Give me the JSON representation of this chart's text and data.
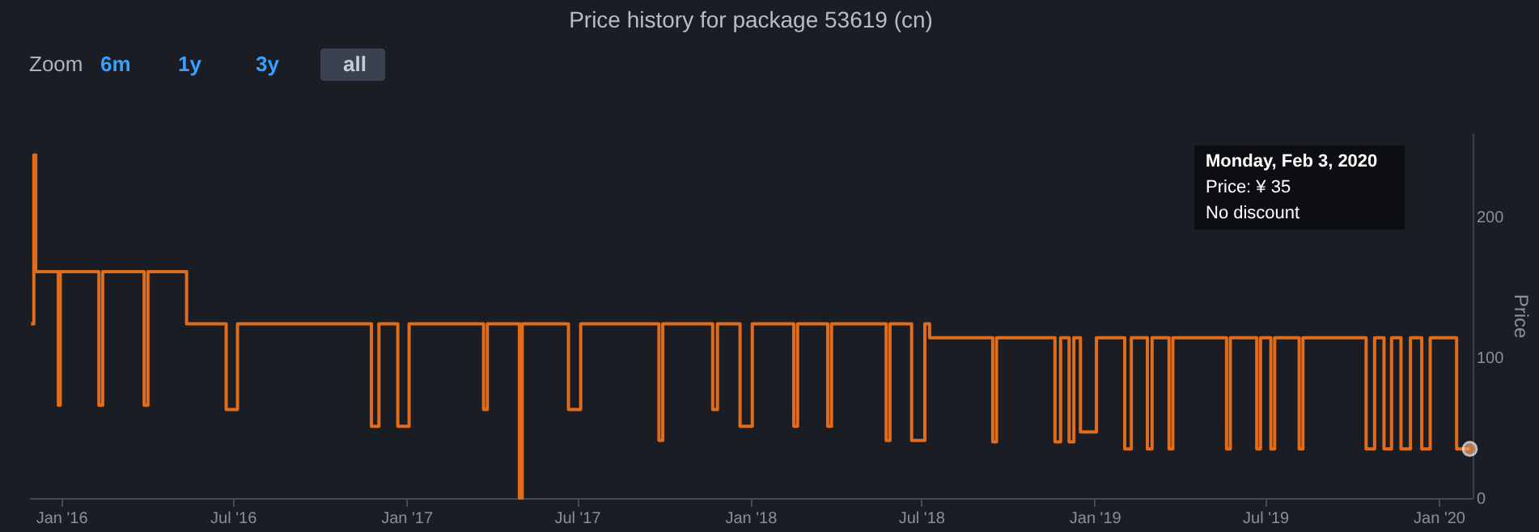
{
  "chart_data": {
    "type": "step",
    "title": "Price history for package 53619 (cn)",
    "ylabel": "Price",
    "x": [
      "2015-11-30",
      "2015-12-03",
      "2015-12-05",
      "2015-12-29",
      "2015-12-31",
      "2016-02-10",
      "2016-02-14",
      "2016-03-29",
      "2016-04-02",
      "2016-05-13",
      "2016-06-24",
      "2016-07-06",
      "2016-11-25",
      "2016-12-03",
      "2016-12-23",
      "2017-01-04",
      "2017-03-24",
      "2017-03-28",
      "2017-05-01",
      "2017-05-04",
      "2017-06-22",
      "2017-07-05",
      "2017-09-26",
      "2017-09-30",
      "2017-11-22",
      "2017-11-27",
      "2017-12-21",
      "2018-01-03",
      "2018-02-16",
      "2018-02-20",
      "2018-03-24",
      "2018-03-28",
      "2018-05-25",
      "2018-05-29",
      "2018-06-21",
      "2018-07-05",
      "2018-07-10",
      "2018-09-15",
      "2018-09-19",
      "2018-11-20",
      "2018-11-26",
      "2018-12-05",
      "2018-12-10",
      "2018-12-17",
      "2019-01-03",
      "2019-02-02",
      "2019-02-09",
      "2019-02-26",
      "2019-03-03",
      "2019-03-21",
      "2019-03-25",
      "2019-05-21",
      "2019-05-25",
      "2019-06-22",
      "2019-06-26",
      "2019-07-07",
      "2019-07-11",
      "2019-08-06",
      "2019-08-10",
      "2019-10-16",
      "2019-10-25",
      "2019-11-04",
      "2019-11-12",
      "2019-11-22",
      "2019-12-02",
      "2019-12-14",
      "2019-12-23",
      "2020-01-20",
      "2020-02-03"
    ],
    "series": [
      {
        "color": "#e06c1c",
        "values": [
          124,
          244,
          161,
          66,
          161,
          66,
          161,
          66,
          161,
          124,
          63,
          124,
          51,
          124,
          51,
          124,
          63,
          124,
          0,
          124,
          63,
          124,
          41,
          124,
          63,
          124,
          51,
          124,
          51,
          124,
          51,
          124,
          41,
          124,
          41,
          124,
          114,
          40,
          114,
          40,
          114,
          40,
          114,
          47,
          114,
          35,
          114,
          35,
          114,
          35,
          114,
          35,
          114,
          35,
          114,
          35,
          114,
          35,
          114,
          35,
          114,
          35,
          114,
          35,
          114,
          35,
          114,
          35,
          35
        ]
      }
    ],
    "xlim": [
      "2015-11-28",
      "2020-02-06"
    ],
    "xticks": [
      {
        "value": "2016-01-01",
        "label": "Jan '16"
      },
      {
        "value": "2016-07-01",
        "label": "Jul '16"
      },
      {
        "value": "2017-01-01",
        "label": "Jan '17"
      },
      {
        "value": "2017-07-01",
        "label": "Jul '17"
      },
      {
        "value": "2018-01-01",
        "label": "Jan '18"
      },
      {
        "value": "2018-07-01",
        "label": "Jul '18"
      },
      {
        "value": "2019-01-01",
        "label": "Jan '19"
      },
      {
        "value": "2019-07-01",
        "label": "Jul '19"
      },
      {
        "value": "2020-01-01",
        "label": "Jan '20"
      }
    ],
    "ylim": [
      0,
      260
    ],
    "yticks": [
      0,
      100,
      200
    ],
    "grid": false,
    "annotations": [
      "Zoom",
      "6m",
      "1y",
      "3y",
      "all",
      "Monday, Feb 3, 2020\nPrice: ¥ 35\nNo discount"
    ]
  }
}
